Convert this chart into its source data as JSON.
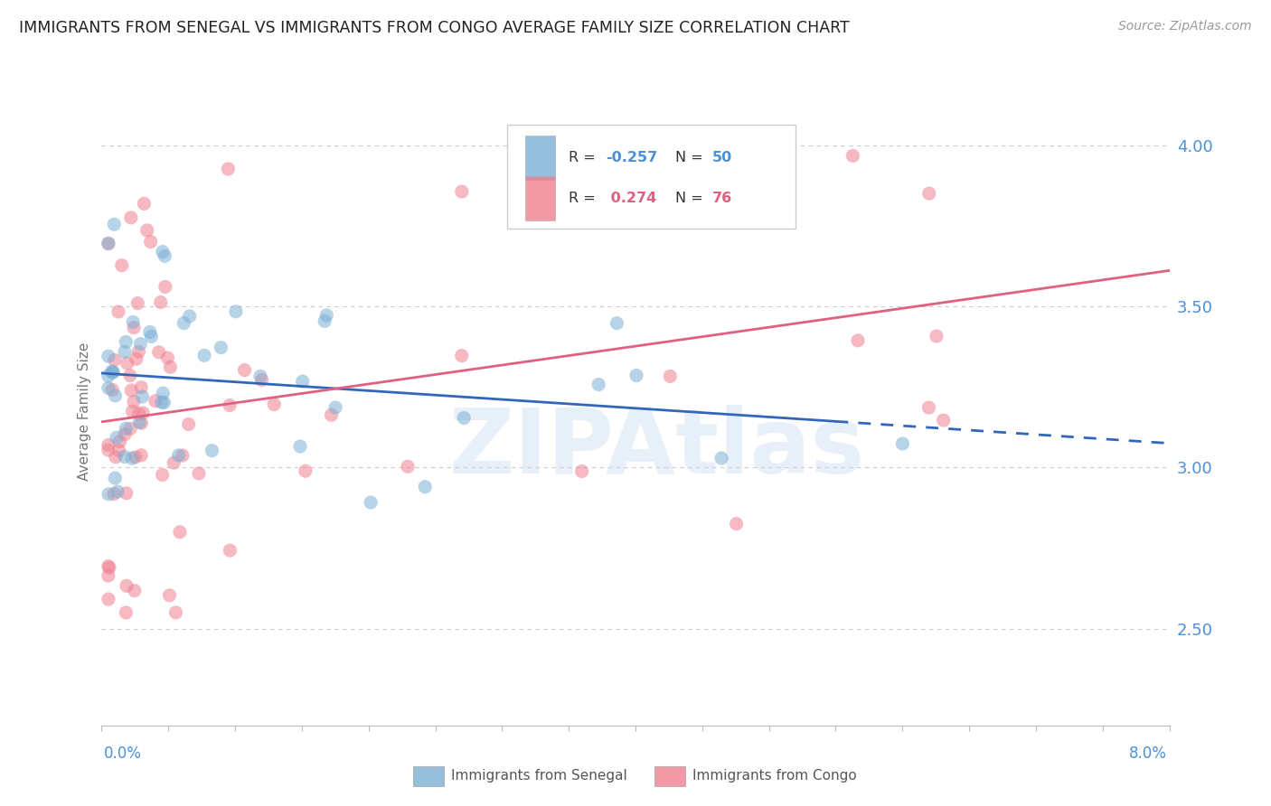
{
  "title": "IMMIGRANTS FROM SENEGAL VS IMMIGRANTS FROM CONGO AVERAGE FAMILY SIZE CORRELATION CHART",
  "source": "Source: ZipAtlas.com",
  "ylabel": "Average Family Size",
  "right_yticks": [
    2.5,
    3.0,
    3.5,
    4.0
  ],
  "xlim": [
    0.0,
    0.08
  ],
  "ylim": [
    2.2,
    4.15
  ],
  "senegal_color": "#7bafd4",
  "congo_color": "#f08090",
  "senegal_line_color": "#3366bb",
  "congo_line_color": "#e06080",
  "R_senegal": -0.257,
  "N_senegal": 50,
  "R_congo": 0.274,
  "N_congo": 76,
  "watermark": "ZIPAtlas",
  "watermark_color": "#c5d8ee",
  "title_fontsize": 12.5,
  "source_fontsize": 10,
  "tick_label_color": "#4a90d9",
  "axis_label_color": "#777777",
  "grid_color": "#cccccc",
  "legend_text_color": "#333333",
  "legend_value_color": "#4a90d9",
  "congo_value_color": "#e06080"
}
